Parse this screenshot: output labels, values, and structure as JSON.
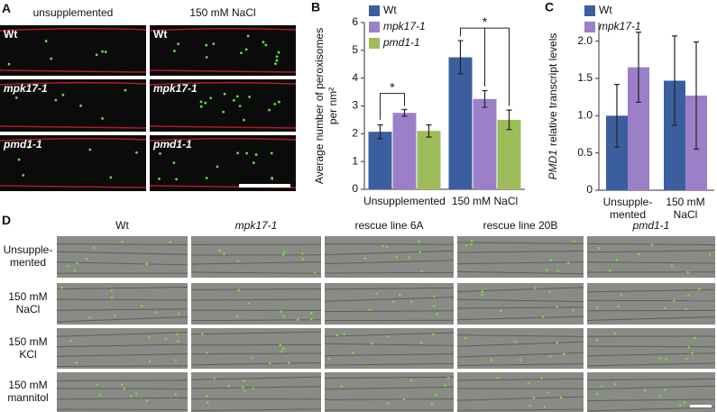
{
  "panel_a": {
    "label": "A",
    "columns": [
      "unsupplemented",
      "150 mM NaCl"
    ],
    "rows": [
      [
        "Wt",
        "Wt"
      ],
      [
        "mpk17-1",
        "mpk17-1"
      ],
      [
        "pmd1-1",
        "pmd1-1"
      ]
    ]
  },
  "chart_data": [
    {
      "type": "bar",
      "panel_label": "B",
      "ylabel": [
        "Average number of peroxisomes",
        "per nm²"
      ],
      "categories": [
        "Unsupplemented",
        "150 mM NaCl"
      ],
      "series": [
        {
          "name": "Wt",
          "color": "#3b5f9e",
          "values": [
            2.07,
            4.75
          ],
          "errors": [
            0.25,
            0.6
          ]
        },
        {
          "name": "mpk17-1",
          "color": "#9b80c8",
          "values": [
            2.75,
            3.25
          ],
          "errors": [
            0.12,
            0.3
          ]
        },
        {
          "name": "pmd1-1",
          "color": "#9cbd5a",
          "values": [
            2.1,
            2.5
          ],
          "errors": [
            0.22,
            0.35
          ]
        }
      ],
      "ylim": [
        0,
        6
      ],
      "yticks": [
        0,
        1,
        2,
        3,
        4,
        5,
        6
      ],
      "annotations": [
        "*",
        "*"
      ]
    },
    {
      "type": "bar",
      "panel_label": "C",
      "ylabel": [
        "PMD1",
        "relative transcript levels"
      ],
      "categories": [
        "Unsupple-mented",
        "150 mM NaCl"
      ],
      "series": [
        {
          "name": "Wt",
          "color": "#3b5f9e",
          "values": [
            1.0,
            1.47
          ],
          "errors": [
            0.42,
            0.6
          ]
        },
        {
          "name": "mpk17-1",
          "color": "#9b80c8",
          "values": [
            1.65,
            1.27
          ],
          "errors": [
            0.47,
            0.72
          ]
        }
      ],
      "ylim": [
        0,
        2.25
      ],
      "yticks": [
        0,
        0.5,
        {
          "value": 1,
          "label": "1.0"
        },
        1.5,
        {
          "value": 2,
          "label": "2.0"
        }
      ]
    }
  ],
  "panel_d": {
    "label": "D",
    "columns": [
      "Wt",
      "mpk17-1",
      "rescue line 6A",
      "rescue line 20B",
      "pmd1-1"
    ],
    "rows": [
      "Unsupple-mented",
      "150 mM NaCl",
      "150 mM KCl",
      "150 mM mannitol"
    ]
  }
}
